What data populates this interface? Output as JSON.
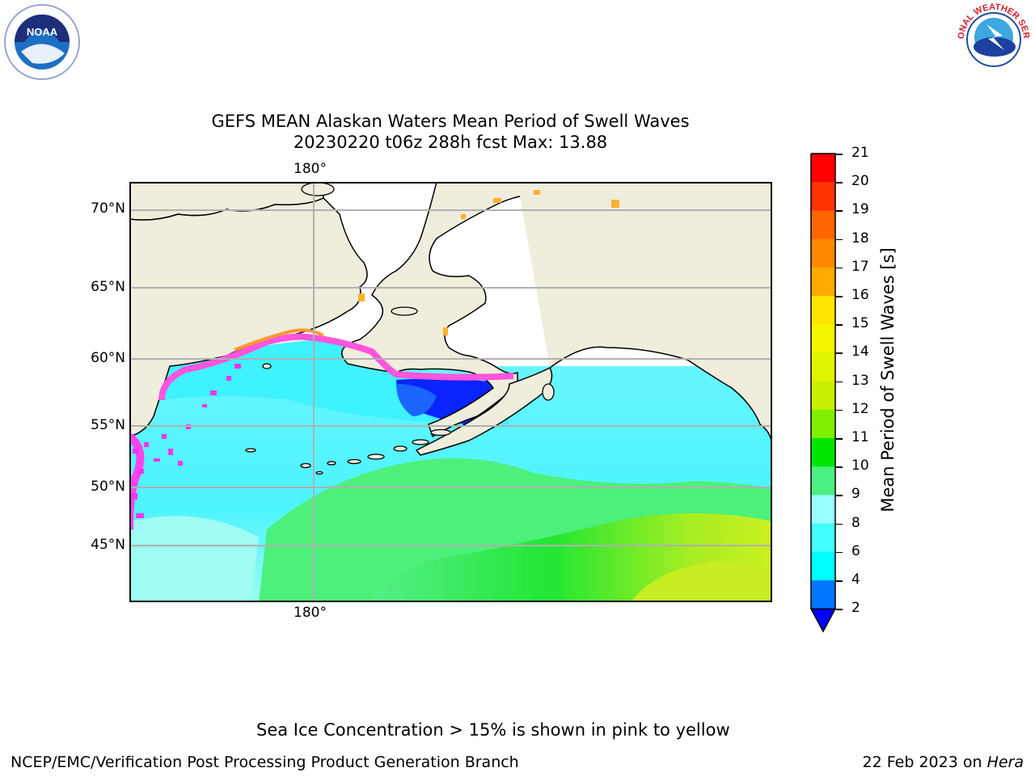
{
  "title": {
    "line1": "GEFS MEAN Alaskan Waters Mean Period of Swell Waves",
    "line2": "20230220 t06z 288h fcst   Max: 13.88"
  },
  "map": {
    "lat_labels": [
      "70°N",
      "65°N",
      "60°N",
      "55°N",
      "50°N",
      "45°N"
    ],
    "lon_label_top": "180°",
    "lon_label_bottom": "180°",
    "land_color": "#efeddc",
    "grid_color": "#b0b0b0"
  },
  "colorbar": {
    "label": "Mean Period of Swell Waves [s]",
    "ticks": [
      "21",
      "20",
      "19",
      "18",
      "17",
      "16",
      "15",
      "14",
      "13",
      "12",
      "11",
      "10",
      "9",
      "8",
      "6",
      "4",
      "2"
    ],
    "colors": [
      "#ff0000",
      "#ff3300",
      "#ff6600",
      "#ff8800",
      "#ffaa00",
      "#ffe600",
      "#f5f500",
      "#e0f500",
      "#c8f000",
      "#7ff000",
      "#00e600",
      "#4cf080",
      "#99ffff",
      "#44ffff",
      "#00ffff",
      "#0077ff"
    ],
    "extend_color": "#0000ff"
  },
  "notes": {
    "sea_ice": "Sea Ice Concentration > 15% is shown in pink to yellow"
  },
  "footer": {
    "left": "NCEP/EMC/Verification Post Processing Product Generation Branch",
    "right_date": "22 Feb 2023 on",
    "right_host": "Hera"
  },
  "logos": {
    "noaa": "NOAA",
    "nws": "NATIONAL WEATHER SERVICE"
  }
}
